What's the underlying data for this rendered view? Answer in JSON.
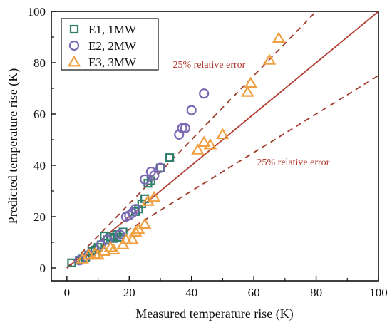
{
  "chart_data": {
    "type": "scatter",
    "xlabel": "Measured temperature rise (K)",
    "ylabel": "Predicted temperature rise (K)",
    "xlim": [
      -5,
      100
    ],
    "ylim": [
      -5,
      100
    ],
    "xticks": [
      0,
      20,
      40,
      60,
      80,
      100
    ],
    "yticks": [
      0,
      20,
      40,
      60,
      80,
      100
    ],
    "grid": false,
    "legend_position": "top-left",
    "series": [
      {
        "name": "E1, 1MW",
        "marker": "square",
        "color": "#2e7d6b",
        "points": [
          [
            1.5,
            2
          ],
          [
            4,
            3
          ],
          [
            5,
            3.5
          ],
          [
            6,
            4
          ],
          [
            7,
            5
          ],
          [
            8,
            6.5
          ],
          [
            9,
            7
          ],
          [
            10,
            8
          ],
          [
            11,
            9
          ],
          [
            12,
            12.5
          ],
          [
            13,
            11
          ],
          [
            14,
            12
          ],
          [
            15,
            11.5
          ],
          [
            16,
            13
          ],
          [
            17,
            12
          ],
          [
            18,
            14
          ],
          [
            22,
            22
          ],
          [
            23,
            23
          ],
          [
            24,
            25
          ],
          [
            25,
            27
          ],
          [
            26,
            33
          ],
          [
            27,
            34
          ],
          [
            30,
            39
          ],
          [
            33,
            43
          ]
        ]
      },
      {
        "name": "E2, 2MW",
        "marker": "circle",
        "color": "#7b68b5",
        "points": [
          [
            4,
            3
          ],
          [
            7,
            5
          ],
          [
            11,
            9
          ],
          [
            13,
            11
          ],
          [
            17,
            13
          ],
          [
            19,
            20
          ],
          [
            20,
            20.5
          ],
          [
            21,
            21.5
          ],
          [
            22,
            23
          ],
          [
            25,
            34.5
          ],
          [
            27,
            37.5
          ],
          [
            28,
            36
          ],
          [
            30,
            39
          ],
          [
            36,
            52
          ],
          [
            37,
            54.5
          ],
          [
            38,
            54.5
          ],
          [
            40,
            61.5
          ],
          [
            44,
            68
          ]
        ]
      },
      {
        "name": "E3, 3MW",
        "marker": "triangle",
        "color": "#f0a040",
        "points": [
          [
            5,
            3.5
          ],
          [
            7,
            5
          ],
          [
            9,
            5.5
          ],
          [
            10,
            5
          ],
          [
            12,
            6.5
          ],
          [
            14,
            8
          ],
          [
            15,
            7
          ],
          [
            18,
            9
          ],
          [
            19,
            11
          ],
          [
            21,
            11
          ],
          [
            22,
            14
          ],
          [
            23,
            15
          ],
          [
            25,
            17
          ],
          [
            26,
            26
          ],
          [
            28,
            27.5
          ],
          [
            42,
            46
          ],
          [
            44,
            49
          ],
          [
            46,
            48
          ],
          [
            50,
            52
          ],
          [
            58,
            68.5
          ],
          [
            59,
            72
          ],
          [
            65,
            81
          ],
          [
            68,
            89.5
          ]
        ]
      }
    ],
    "reference_lines": [
      {
        "kind": "solid",
        "slope": 1.0,
        "color": "#b03a2e"
      },
      {
        "kind": "dashed",
        "slope": 1.25,
        "color": "#a03a2a"
      },
      {
        "kind": "dashed",
        "slope": 0.75,
        "color": "#a03a2a"
      }
    ],
    "annotations": [
      {
        "text": "25% relative error",
        "x": 34,
        "y": 78,
        "color": "#b03a2e"
      },
      {
        "text": "25% relative error",
        "x": 61,
        "y": 40,
        "color": "#b03a2e"
      }
    ]
  }
}
